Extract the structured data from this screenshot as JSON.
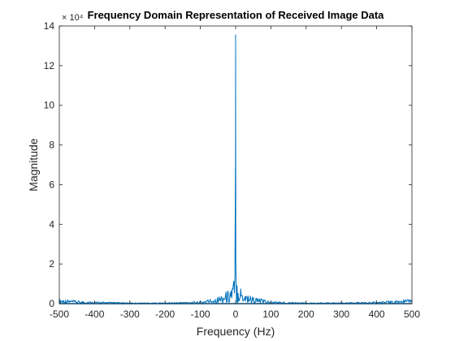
{
  "chart_data": {
    "type": "line",
    "title": "Frequency Domain Representation of Received Image Data",
    "xlabel": "Frequency (Hz)",
    "ylabel": "Magnitude",
    "y_exponent_label": "× 10⁴",
    "xlim": [
      -500,
      500
    ],
    "ylim": [
      0,
      14
    ],
    "xticks": [
      -500,
      -400,
      -300,
      -200,
      -100,
      0,
      100,
      200,
      300,
      400,
      500
    ],
    "xtick_labels": [
      "-500",
      "-400",
      "-300",
      "-200",
      "-100",
      "0",
      "100",
      "200",
      "300",
      "400",
      "500"
    ],
    "yticks": [
      0,
      2,
      4,
      6,
      8,
      10,
      12,
      14
    ],
    "ytick_labels": [
      "0",
      "2",
      "4",
      "6",
      "8",
      "10",
      "12",
      "14"
    ],
    "grid": false,
    "box": true,
    "series": [
      {
        "color": "#0072BD",
        "peak": {
          "x": 0,
          "y": 13.55
        },
        "envelope": [
          {
            "x": -500,
            "y": 0.25
          },
          {
            "x": -450,
            "y": 0.15
          },
          {
            "x": -400,
            "y": 0.1
          },
          {
            "x": -300,
            "y": 0.05
          },
          {
            "x": -200,
            "y": 0.05
          },
          {
            "x": -100,
            "y": 0.12
          },
          {
            "x": -50,
            "y": 0.35
          },
          {
            "x": -20,
            "y": 0.7
          },
          {
            "x": -8,
            "y": 1.1
          },
          {
            "x": -3,
            "y": 1.4
          },
          {
            "x": -1,
            "y": 2.3
          },
          {
            "x": 0,
            "y": 13.55
          },
          {
            "x": 1,
            "y": 2.3
          },
          {
            "x": 3,
            "y": 1.4
          },
          {
            "x": 8,
            "y": 1.1
          },
          {
            "x": 20,
            "y": 0.7
          },
          {
            "x": 50,
            "y": 0.35
          },
          {
            "x": 100,
            "y": 0.12
          },
          {
            "x": 200,
            "y": 0.05
          },
          {
            "x": 300,
            "y": 0.05
          },
          {
            "x": 400,
            "y": 0.1
          },
          {
            "x": 450,
            "y": 0.15
          },
          {
            "x": 500,
            "y": 0.25
          }
        ]
      }
    ]
  }
}
